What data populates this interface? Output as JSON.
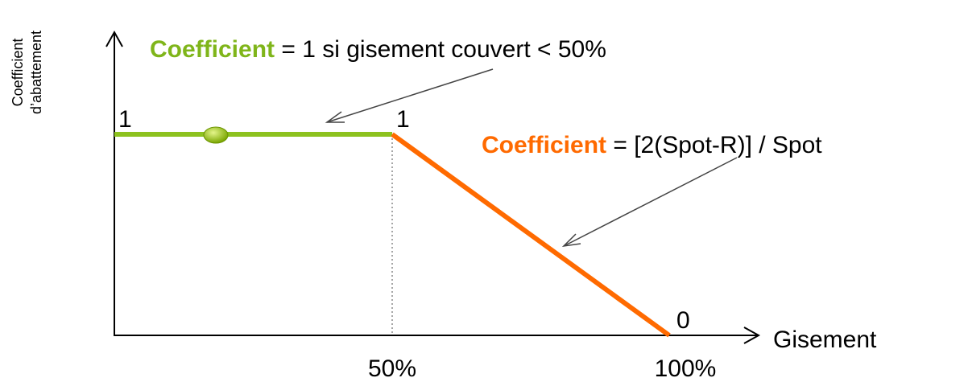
{
  "axis": {
    "y_label": [
      "Coefficient",
      "d’abattement"
    ],
    "x_label": "Gisement",
    "x_ticks": [
      "50%",
      "100%"
    ]
  },
  "points": {
    "start": "1",
    "middle": "1",
    "end": "0"
  },
  "annotations": [
    {
      "keyword": "Coefficient",
      "text": " = 1 si gisement couvert < 50%"
    },
    {
      "keyword": "Coefficient",
      "text": " = [2(Spot-R)] / Spot"
    }
  ]
}
